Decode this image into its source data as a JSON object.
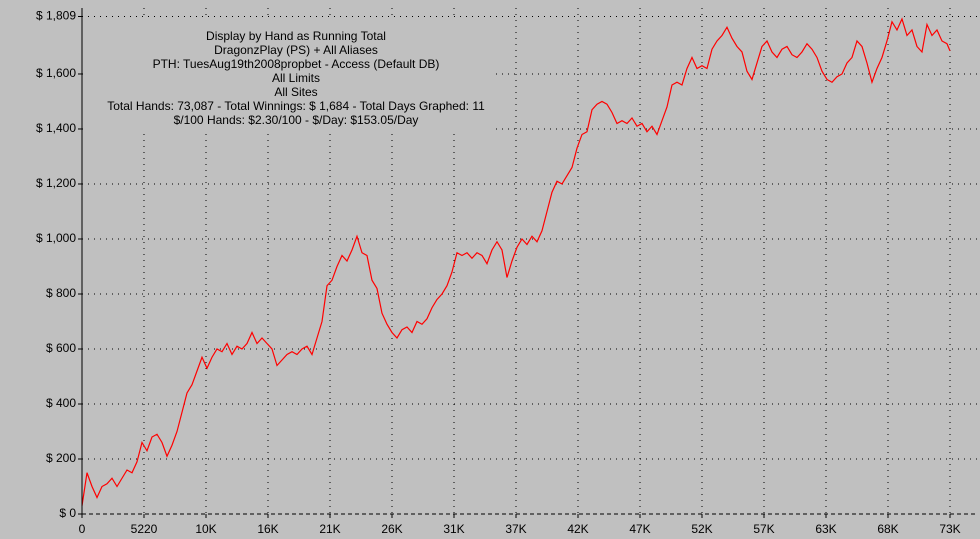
{
  "chart_data": {
    "type": "line",
    "annotations": [
      "Display by Hand as Running Total",
      "DragonzPlay (PS) + All Aliases",
      "PTH: TuesAug19th2008propbet - Access (Default DB)",
      "All Limits",
      "All Sites",
      "Total Hands: 73,087 - Total Winnings: $ 1,684 - Total Days Graphed: 11",
      "$/100 Hands: $2.30/100 - $/Day: $153.05/Day"
    ],
    "x": [
      0,
      421,
      842,
      1263,
      1684,
      2105,
      2526,
      2947,
      3368,
      3789,
      4210,
      4631,
      5052,
      5473,
      5894,
      6315,
      6736,
      7157,
      7578,
      7999,
      8420,
      8841,
      9262,
      9683,
      10104,
      10525,
      10946,
      11367,
      11788,
      12209,
      12630,
      13051,
      13472,
      13893,
      14314,
      14735,
      15156,
      15577,
      15998,
      16419,
      16840,
      17261,
      17682,
      18103,
      18524,
      18945,
      19366,
      19787,
      20208,
      20629,
      21050,
      21471,
      21892,
      22313,
      22734,
      23155,
      23576,
      23997,
      24418,
      24839,
      25260,
      25681,
      26102,
      26523,
      26944,
      27365,
      27786,
      28207,
      28628,
      29049,
      29470,
      29891,
      30312,
      30733,
      31154,
      31575,
      31996,
      32417,
      32838,
      33259,
      33680,
      34101,
      34522,
      34943,
      35364,
      35785,
      36206,
      36627,
      37048,
      37469,
      37890,
      38311,
      38732,
      39153,
      39574,
      39995,
      40416,
      40837,
      41258,
      41679,
      42100,
      42521,
      42942,
      43363,
      43784,
      44205,
      44626,
      45047,
      45468,
      45889,
      46310,
      46731,
      47152,
      47573,
      47994,
      48415,
      48836,
      49257,
      49678,
      50099,
      50520,
      50941,
      51362,
      51783,
      52204,
      52625,
      53046,
      53467,
      53888,
      54309,
      54730,
      55151,
      55572,
      55993,
      56414,
      56835,
      57256,
      57677,
      58098,
      58519,
      58940,
      59361,
      59782,
      60203,
      60624,
      61045,
      61466,
      61887,
      62308,
      62729,
      63150,
      63571,
      63992,
      64413,
      64834,
      65255,
      65676,
      66097,
      66518,
      66939,
      67360,
      67781,
      68202,
      68623,
      69044,
      69465,
      69886,
      70307,
      70728,
      71149,
      71570,
      71991,
      72412,
      72833,
      73087
    ],
    "series": [
      {
        "color": "#ff0000",
        "values": [
          30,
          150,
          100,
          60,
          100,
          110,
          130,
          100,
          130,
          160,
          150,
          190,
          260,
          230,
          280,
          290,
          260,
          210,
          250,
          300,
          370,
          440,
          470,
          520,
          570,
          530,
          570,
          600,
          590,
          620,
          580,
          610,
          600,
          620,
          660,
          620,
          640,
          620,
          600,
          540,
          560,
          580,
          590,
          580,
          600,
          610,
          580,
          640,
          700,
          830,
          850,
          900,
          940,
          920,
          960,
          1010,
          950,
          940,
          850,
          820,
          730,
          690,
          660,
          640,
          670,
          680,
          660,
          700,
          690,
          710,
          750,
          780,
          800,
          830,
          880,
          950,
          940,
          950,
          930,
          950,
          940,
          910,
          960,
          990,
          960,
          860,
          920,
          970,
          1000,
          980,
          1010,
          990,
          1030,
          1100,
          1170,
          1210,
          1200,
          1230,
          1260,
          1330,
          1380,
          1390,
          1470,
          1490,
          1500,
          1490,
          1460,
          1420,
          1430,
          1420,
          1440,
          1410,
          1420,
          1390,
          1410,
          1380,
          1430,
          1480,
          1560,
          1570,
          1560,
          1620,
          1660,
          1620,
          1630,
          1620,
          1690,
          1720,
          1740,
          1770,
          1730,
          1700,
          1680,
          1610,
          1580,
          1640,
          1700,
          1720,
          1680,
          1660,
          1690,
          1700,
          1670,
          1660,
          1680,
          1710,
          1690,
          1660,
          1610,
          1580,
          1570,
          1590,
          1600,
          1640,
          1660,
          1720,
          1700,
          1640,
          1570,
          1620,
          1660,
          1720,
          1790,
          1760,
          1800,
          1740,
          1760,
          1700,
          1680,
          1780,
          1740,
          1760,
          1720,
          1710,
          1684
        ]
      }
    ],
    "xlim": [
      0,
      73087
    ],
    "xticks": [
      0,
      5220,
      {
        "value": 10441,
        "label": "10K"
      },
      {
        "value": 15661.5,
        "label": "16K"
      },
      {
        "value": 20882,
        "label": "21K"
      },
      {
        "value": 26102.5,
        "label": "26K"
      },
      {
        "value": 31323,
        "label": "31K"
      },
      {
        "value": 36543.5,
        "label": "37K"
      },
      {
        "value": 41764,
        "label": "42K"
      },
      {
        "value": 46984.5,
        "label": "47K"
      },
      {
        "value": 52205,
        "label": "52K"
      },
      {
        "value": 57425.5,
        "label": "57K"
      },
      {
        "value": 62646,
        "label": "63K"
      },
      {
        "value": 67866.5,
        "label": "68K"
      },
      {
        "value": 73087,
        "label": "73K"
      }
    ],
    "ylim": [
      0,
      1809
    ],
    "yticks": [
      {
        "value": 0,
        "label": "$ 0"
      },
      {
        "value": 200,
        "label": "$ 200"
      },
      {
        "value": 400,
        "label": "$ 400"
      },
      {
        "value": 600,
        "label": "$ 600"
      },
      {
        "value": 800,
        "label": "$ 800"
      },
      {
        "value": 1000,
        "label": "$ 1,000"
      },
      {
        "value": 1200,
        "label": "$ 1,200"
      },
      {
        "value": 1400,
        "label": "$ 1,400"
      },
      {
        "value": 1600,
        "label": "$ 1,600"
      },
      {
        "value": 1809,
        "label": "$ 1,809"
      }
    ],
    "grid": true
  }
}
